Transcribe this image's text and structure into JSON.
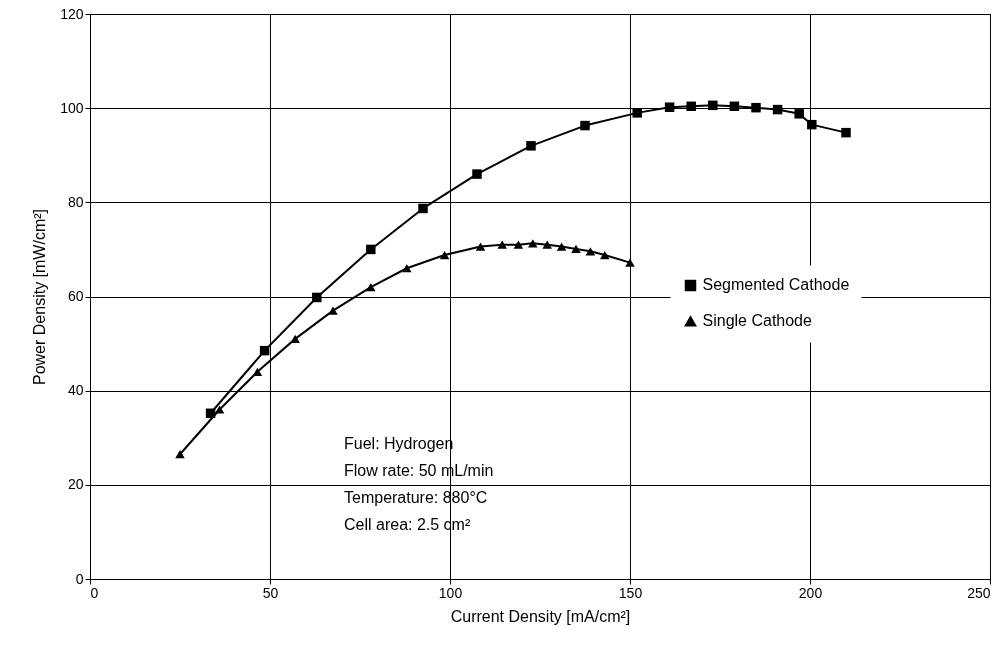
{
  "chart_data": {
    "type": "line",
    "xlabel": "Current Density [mA/cm²]",
    "ylabel": "Power Density [mW/cm²]",
    "xlim": [
      0,
      250
    ],
    "xticks": [
      0,
      50,
      100,
      150,
      200,
      250
    ],
    "ylim": [
      0,
      120
    ],
    "yticks": [
      0,
      20,
      40,
      60,
      80,
      100,
      120
    ],
    "grid": true,
    "legend": "right",
    "line_style": "solid",
    "series": [
      {
        "name": "Segmented Cathode",
        "color": "#000000",
        "marker": "square",
        "x": [
          33.5,
          48.5,
          63,
          78,
          92.5,
          107.5,
          122.5,
          137.5,
          152,
          161,
          167,
          173,
          179,
          185,
          191,
          197,
          200.5,
          210
        ],
        "values": [
          35.2,
          48.5,
          59.8,
          70,
          78.7,
          86,
          92,
          96.3,
          99,
          100.2,
          100.4,
          100.6,
          100.4,
          100.1,
          99.7,
          98.8,
          96.5,
          94.8
        ]
      },
      {
        "name": "Single Cathode",
        "color": "#000000",
        "marker": "triangle",
        "x": [
          25,
          36,
          46.5,
          57,
          67.5,
          78,
          88,
          98.5,
          108.5,
          114.5,
          119,
          123,
          127,
          131,
          135,
          139,
          143,
          150
        ],
        "values": [
          26.5,
          36,
          44,
          51,
          57,
          62,
          66,
          68.8,
          70.6,
          71,
          71,
          71.3,
          71,
          70.6,
          70.1,
          69.6,
          68.8,
          67.2
        ]
      }
    ],
    "annotations": [
      "Fuel: Hydrogen",
      "Flow rate: 50 mL/min",
      "Temperature: 880°C",
      "Cell area: 2.5 cm²"
    ]
  }
}
